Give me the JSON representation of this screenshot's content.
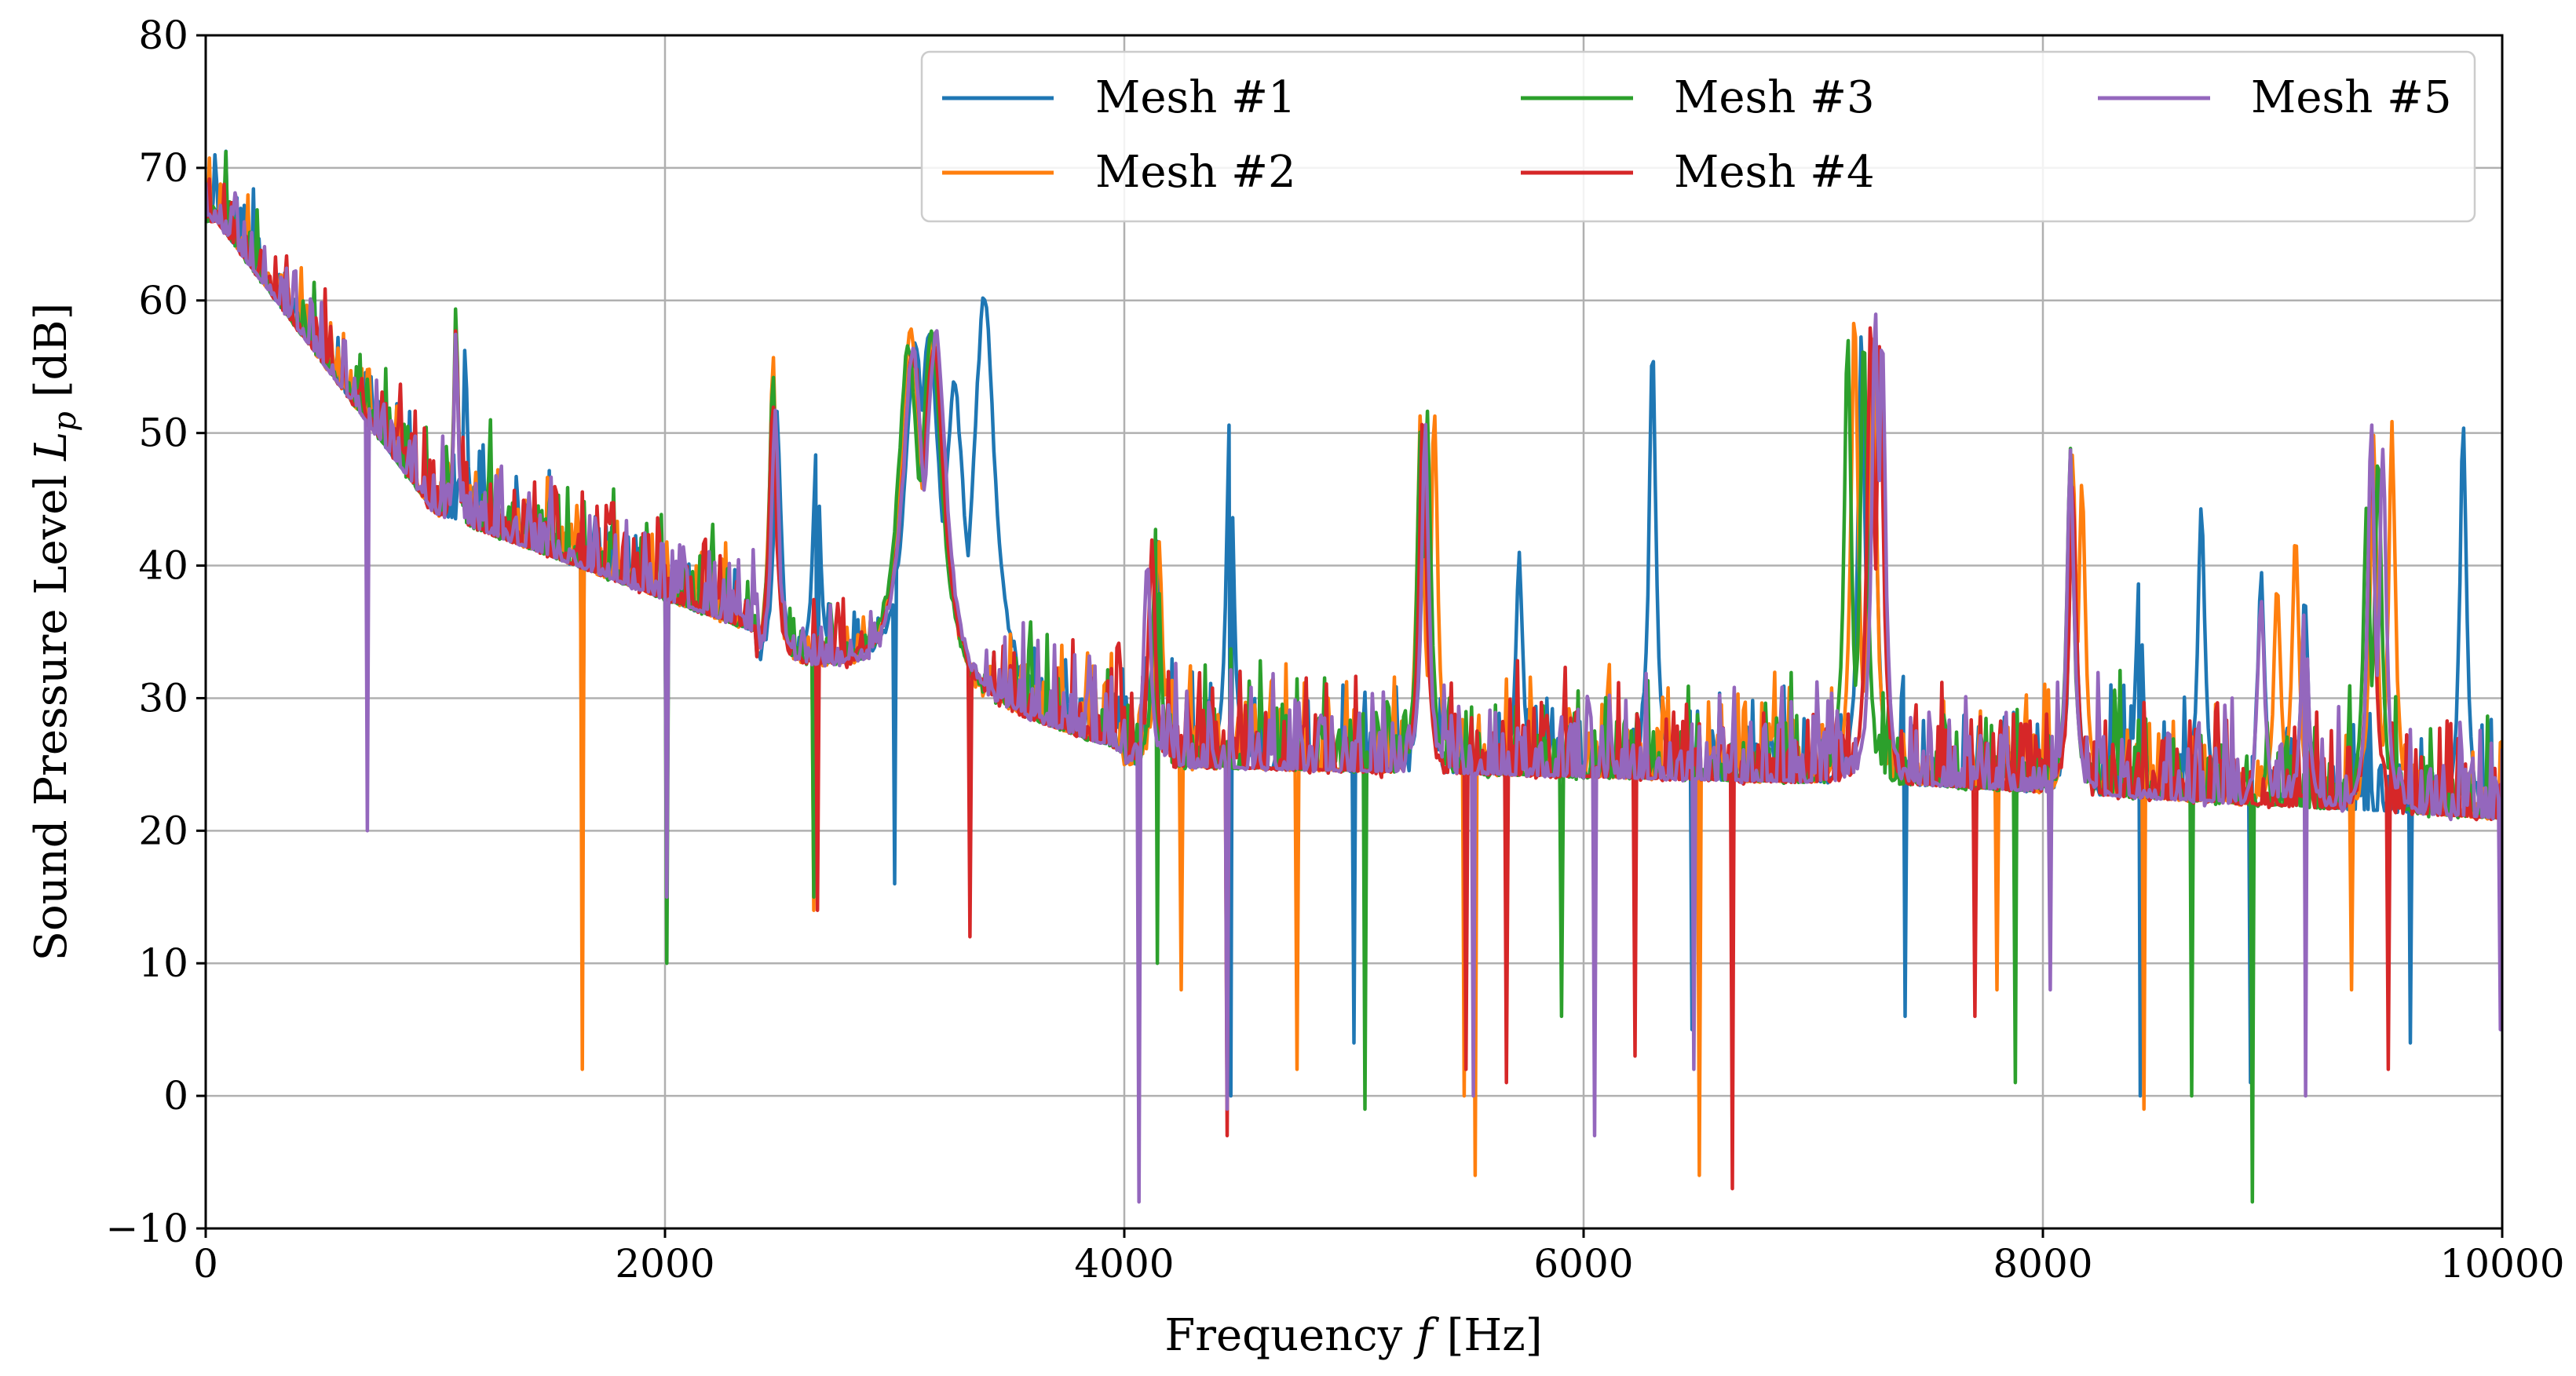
{
  "chart_data": {
    "type": "line",
    "title": "",
    "xlabel": "Frequency f [Hz]",
    "xlabel_parts": {
      "text": "Frequency ",
      "var": "f",
      "unit": " [Hz]"
    },
    "ylabel": "Sound Pressure Level L_p [dB]",
    "ylabel_parts": {
      "text": "Sound Pressure Level ",
      "var": "L",
      "sub": "p",
      "unit": " [dB]"
    },
    "xlim": [
      0,
      10000
    ],
    "ylim": [
      -10,
      80
    ],
    "xticks": [
      0,
      2000,
      4000,
      6000,
      8000,
      10000
    ],
    "xtick_labels": [
      "0",
      "2000",
      "4000",
      "6000",
      "8000",
      "10000"
    ],
    "yticks": [
      -10,
      0,
      10,
      20,
      30,
      40,
      50,
      60,
      70,
      80
    ],
    "ytick_labels": [
      "−10",
      "0",
      "10",
      "20",
      "30",
      "40",
      "50",
      "60",
      "70",
      "80"
    ],
    "grid": true,
    "legend_position": "top-right",
    "series": [
      {
        "name": "Mesh #1",
        "color": "#1f77b4",
        "peaks": [
          [
            1130,
            57
          ],
          [
            2490,
            52
          ],
          [
            2660,
            50
          ],
          [
            3090,
            57
          ],
          [
            3150,
            58
          ],
          [
            3260,
            54
          ],
          [
            3390,
            61
          ],
          [
            4140,
            43
          ],
          [
            4460,
            52
          ],
          [
            5310,
            50
          ],
          [
            5720,
            41
          ],
          [
            6300,
            57
          ],
          [
            7210,
            58
          ],
          [
            7260,
            59
          ],
          [
            8130,
            47
          ],
          [
            8420,
            40
          ],
          [
            8690,
            45
          ],
          [
            8950,
            40
          ],
          [
            9140,
            38
          ],
          [
            9830,
            51
          ]
        ],
        "dips": [
          [
            1640,
            14
          ],
          [
            2660,
            18
          ],
          [
            3000,
            16
          ],
          [
            4460,
            0
          ],
          [
            5000,
            4
          ],
          [
            6470,
            5
          ],
          [
            7400,
            6
          ],
          [
            8420,
            0
          ],
          [
            8900,
            1
          ],
          [
            9600,
            4
          ]
        ]
      },
      {
        "name": "Mesh #2",
        "color": "#ff7f0e",
        "peaks": [
          [
            1090,
            59
          ],
          [
            2470,
            56
          ],
          [
            3070,
            58
          ],
          [
            3170,
            57
          ],
          [
            4150,
            43
          ],
          [
            5290,
            52
          ],
          [
            5350,
            52
          ],
          [
            7180,
            60
          ],
          [
            7260,
            59
          ],
          [
            8130,
            49
          ],
          [
            8170,
            47
          ],
          [
            9020,
            39
          ],
          [
            9100,
            43
          ],
          [
            9440,
            50
          ],
          [
            9520,
            51
          ]
        ],
        "dips": [
          [
            1640,
            2
          ],
          [
            2650,
            14
          ],
          [
            4250,
            8
          ],
          [
            4750,
            2
          ],
          [
            5480,
            0
          ],
          [
            5530,
            -6
          ],
          [
            6500,
            -6
          ],
          [
            7800,
            8
          ],
          [
            8440,
            -1
          ],
          [
            9340,
            8
          ]
        ]
      },
      {
        "name": "Mesh #3",
        "color": "#2ca02c",
        "peaks": [
          [
            1090,
            60
          ],
          [
            2470,
            55
          ],
          [
            3060,
            57
          ],
          [
            3160,
            58
          ],
          [
            4140,
            44
          ],
          [
            5290,
            51
          ],
          [
            5320,
            52
          ],
          [
            7150,
            58
          ],
          [
            7220,
            58
          ],
          [
            8120,
            49
          ],
          [
            9410,
            45
          ],
          [
            9460,
            49
          ]
        ],
        "dips": [
          [
            2010,
            10
          ],
          [
            2650,
            15
          ],
          [
            4140,
            10
          ],
          [
            5050,
            -1
          ],
          [
            5900,
            6
          ],
          [
            7880,
            1
          ],
          [
            8650,
            0
          ],
          [
            8910,
            -8
          ]
        ]
      },
      {
        "name": "Mesh #4",
        "color": "#d62728",
        "peaks": [
          [
            1090,
            59
          ],
          [
            2470,
            53
          ],
          [
            3080,
            57
          ],
          [
            3170,
            57
          ],
          [
            4120,
            42
          ],
          [
            5300,
            52
          ],
          [
            7250,
            59
          ],
          [
            7290,
            57
          ],
          [
            8130,
            47
          ],
          [
            9430,
            50
          ]
        ],
        "dips": [
          [
            2660,
            14
          ],
          [
            3330,
            12
          ],
          [
            4450,
            -3
          ],
          [
            5490,
            2
          ],
          [
            5660,
            1
          ],
          [
            6220,
            3
          ],
          [
            6650,
            -7
          ],
          [
            7700,
            6
          ],
          [
            9500,
            2
          ]
        ]
      },
      {
        "name": "Mesh #5",
        "color": "#9467bd",
        "peaks": [
          [
            1090,
            58
          ],
          [
            2480,
            53
          ],
          [
            3080,
            57
          ],
          [
            3180,
            58
          ],
          [
            4100,
            41
          ],
          [
            5310,
            51
          ],
          [
            7270,
            60
          ],
          [
            7300,
            58
          ],
          [
            8120,
            49
          ],
          [
            8950,
            38
          ],
          [
            9140,
            38
          ],
          [
            9430,
            51
          ],
          [
            9480,
            50
          ]
        ],
        "dips": [
          [
            700,
            20
          ],
          [
            2010,
            15
          ],
          [
            4060,
            -8
          ],
          [
            4450,
            -1
          ],
          [
            5520,
            0
          ],
          [
            6050,
            -3
          ],
          [
            6480,
            2
          ],
          [
            8030,
            8
          ],
          [
            9140,
            0
          ],
          [
            9990,
            5
          ]
        ]
      }
    ]
  }
}
